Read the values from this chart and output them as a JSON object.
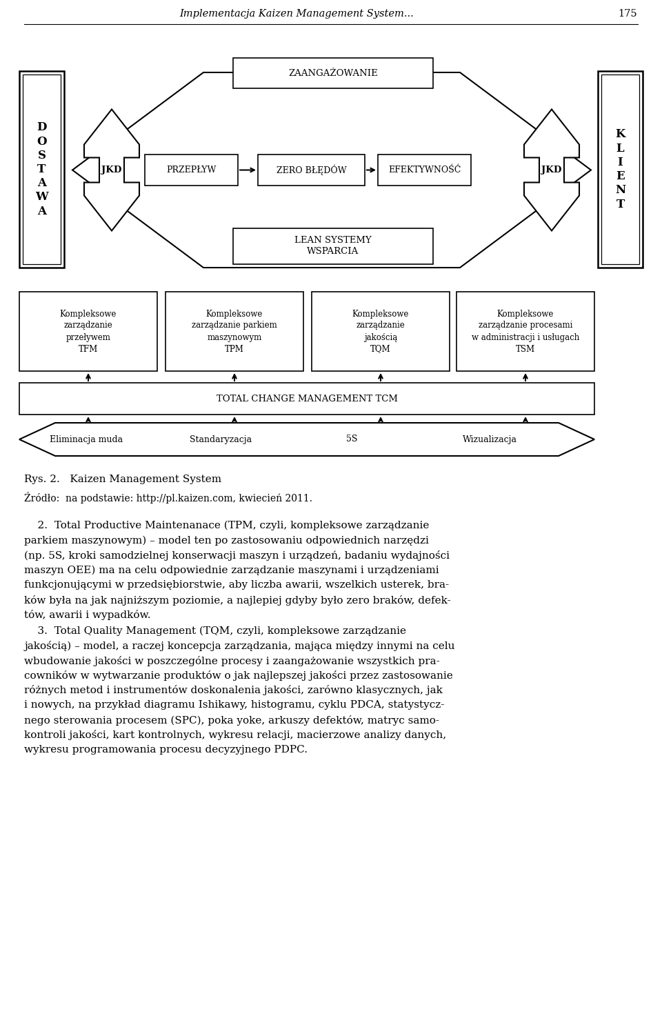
{
  "title_header": "Implementacja Kaizen Management System...",
  "page_number": "175",
  "fig_caption": "Rys. 2.   Kaizen Management System",
  "fig_source": "Źródło:  na podstawie: http://pl.kaizen.com, kwiecień 2011.",
  "dostawa_text": "D\nO\nS\nT\nA\nW\nA",
  "klient_text": "K\nL\nI\nE\nN\nT",
  "jkd_left": "JKD",
  "jkd_right": "JKD",
  "zaangazowanie": "ZAANGAŻOWANIE",
  "lean_systemy": "LEAN SYSTEMY\nWSPARCIA",
  "przeplyw": "PRZEPŁYW",
  "zero_bledow": "ZERO BŁĘDÓW",
  "efektywnosc": "EFEKTYWNOŚĆ",
  "tcm_text": "TOTAL CHANGE MANAGEMENT TCM",
  "box1_text": "Kompleksowe\nzarządzanie\nprzeływem\nTFM",
  "box2_text": "Kompleksowe\nzarządzanie parkiem\nmaszynowym\nTPM",
  "box3_text": "Kompleksowe\nzarządzanie\njakością\nTQM",
  "box4_text": "Kompleksowe\nzarządzanie procesami\nw administracji i usługach\nTSM",
  "bottom_arrow_labels": [
    "Eliminacja muda",
    "Standaryzacja",
    "5S",
    "Wizualizacja"
  ],
  "bg_color": "#ffffff",
  "box_edge_color": "#000000",
  "text_color": "#000000"
}
